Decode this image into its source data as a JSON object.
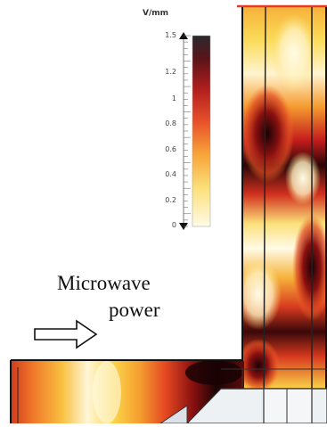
{
  "colorbar": {
    "unit": "V/mm",
    "ticks": [
      "1.5",
      "1.2",
      "1",
      "0.8",
      "0.6",
      "0.4",
      "0.2",
      "0"
    ],
    "range": [
      0,
      1.5
    ],
    "gradient": [
      "#2a2a2e",
      "#5a1418",
      "#b01e1e",
      "#e8502a",
      "#f7a338",
      "#fbe07a",
      "#fffbe6"
    ]
  },
  "caption": {
    "line1": "Microwave",
    "line2": "power"
  },
  "colors": {
    "hot": "#2a0608",
    "red": "#c81e1e",
    "orange": "#f0762a",
    "yellow": "#fbd94a",
    "pale": "#fffbe6",
    "outline": "#111111"
  }
}
